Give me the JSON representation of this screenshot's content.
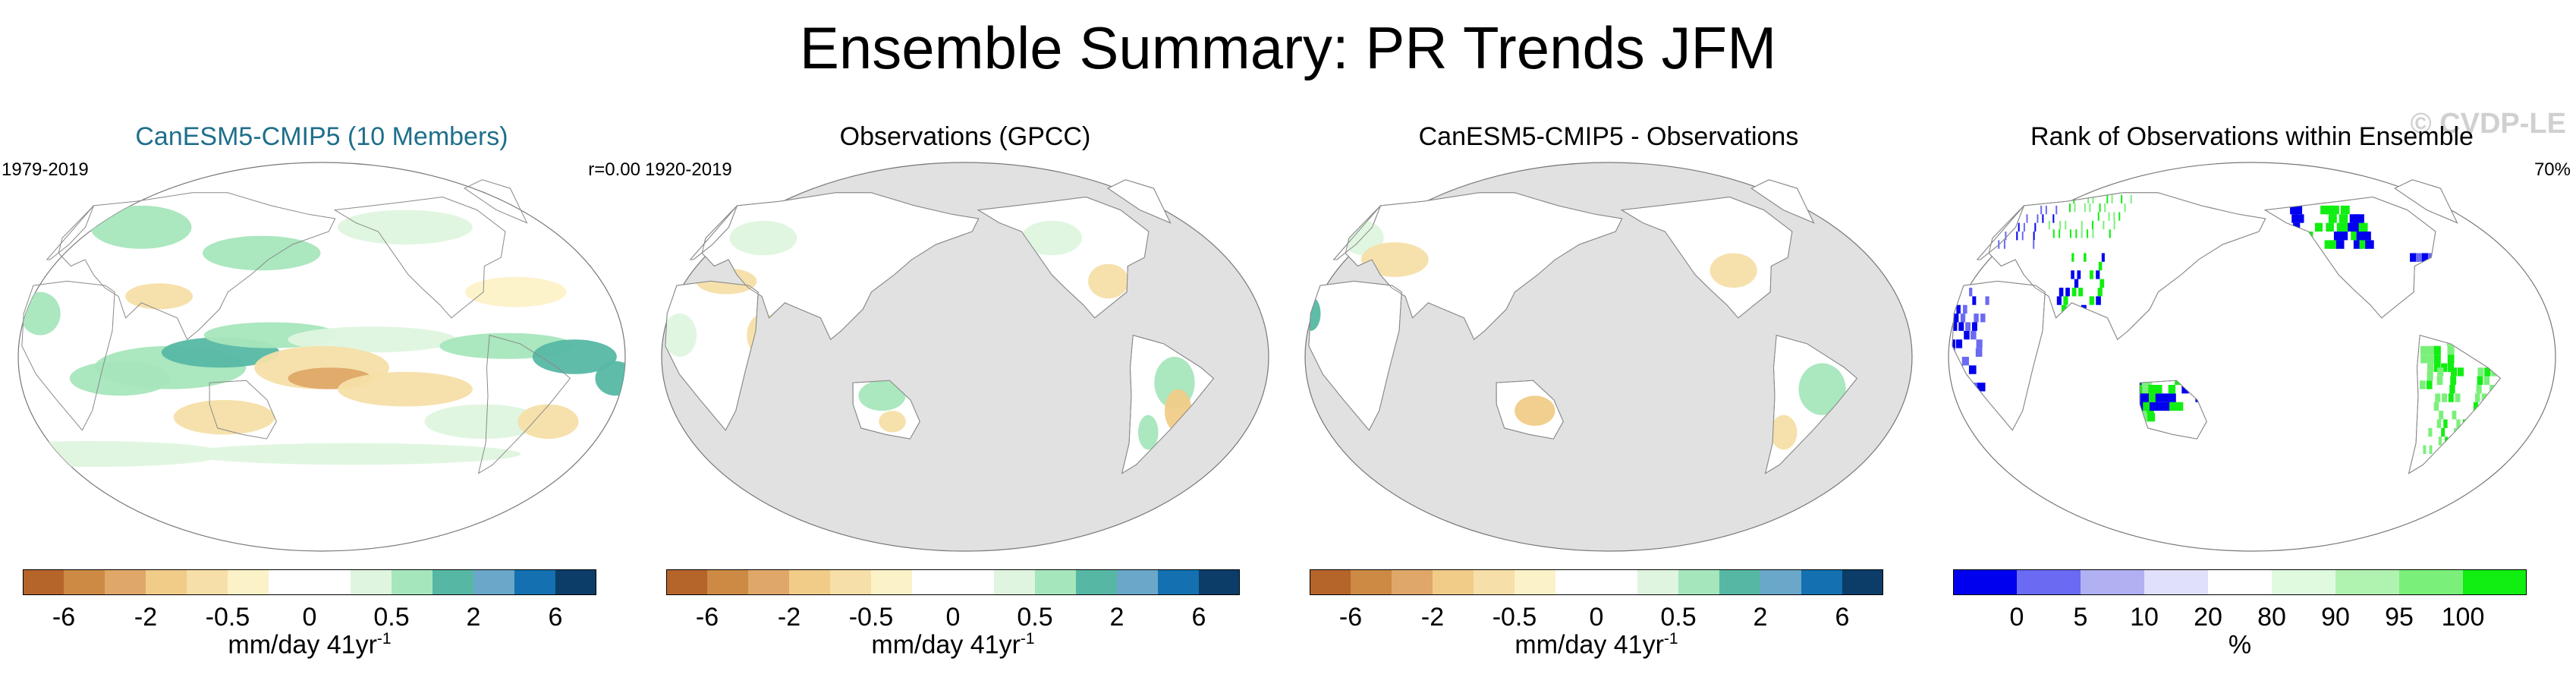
{
  "figure": {
    "title": "Ensemble Summary: PR Trends JFM",
    "watermark": "© CVDP-LE"
  },
  "colors": {
    "trend_scale": [
      "#b5642a",
      "#cc8a44",
      "#dfa868",
      "#f0cc88",
      "#f6dfa8",
      "#fcf2c8",
      "#ffffff",
      "#ffffff",
      "#dff5df",
      "#a6e6bc",
      "#56b8a4",
      "#6aa7c9",
      "#1470b0",
      "#0b3d68"
    ],
    "rank_scale": [
      "#0000ee",
      "#6a6af2",
      "#b0b0f2",
      "#e0e0fa",
      "#ffffff",
      "#e0fae0",
      "#b0f2b0",
      "#7af07a",
      "#11ee11"
    ],
    "ocean_masked": "#e1e1e1",
    "coast": "#8a8a8a"
  },
  "panels": [
    {
      "title": "CanESM5-CMIP5 (10 Members)",
      "years": "1979-2019",
      "stat": "r=0.00",
      "map_kind": "model",
      "cbar_ticks": [
        "-6",
        "-2",
        "-0.5",
        "0",
        "0.5",
        "2",
        "6"
      ],
      "cbar_units": "mm/day 41yr",
      "cbar_units_sup": "-1"
    },
    {
      "title": "Observations (GPCC)",
      "years": "1920-2019",
      "stat": "",
      "map_kind": "obs",
      "cbar_ticks": [
        "-6",
        "-2",
        "-0.5",
        "0",
        "0.5",
        "2",
        "6"
      ],
      "cbar_units": "mm/day 41yr",
      "cbar_units_sup": "-1"
    },
    {
      "title": "CanESM5-CMIP5 - Observations",
      "years": "",
      "stat": "",
      "map_kind": "diff",
      "cbar_ticks": [
        "-6",
        "-2",
        "-0.5",
        "0",
        "0.5",
        "2",
        "6"
      ],
      "cbar_units": "mm/day 41yr",
      "cbar_units_sup": "-1"
    },
    {
      "title": "Rank of Observations within Ensemble",
      "years": "",
      "stat": "70%",
      "map_kind": "rank",
      "cbar_ticks": [
        "0",
        "5",
        "10",
        "20",
        "80",
        "90",
        "95",
        "100"
      ],
      "cbar_units": "%",
      "cbar_units_sup": ""
    }
  ],
  "chart_data": [
    {
      "type": "heatmap",
      "title": "CanESM5-CMIP5 (10 Members)",
      "period": "1979-2019",
      "pattern_correlation": "r=0.00",
      "colorbar": {
        "ticks": [
          -6,
          -2,
          -0.5,
          0,
          0.5,
          2,
          6
        ],
        "units": "mm/day 41yr-1"
      },
      "features": [
        "wet tropical western Pacific and Indian Ocean",
        "dry central equatorial Pacific",
        "wet Southern Ocean band",
        "wet Atlantic ITCZ"
      ]
    },
    {
      "type": "heatmap",
      "title": "Observations (GPCC)",
      "period": "1920-2019",
      "colorbar": {
        "ticks": [
          -6,
          -2,
          -0.5,
          0,
          0.5,
          2,
          6
        ],
        "units": "mm/day 41yr-1"
      },
      "features": [
        "land only",
        "wet northern Australia and Maritime Continent",
        "mixed South America"
      ]
    },
    {
      "type": "heatmap",
      "title": "CanESM5-CMIP5 - Observations",
      "colorbar": {
        "ticks": [
          -6,
          -2,
          -0.5,
          0,
          0.5,
          2,
          6
        ],
        "units": "mm/day 41yr-1"
      },
      "features": [
        "land only",
        "wet South America",
        "dry Australia"
      ]
    },
    {
      "type": "heatmap",
      "title": "Rank of Observations within Ensemble",
      "summary": "70%",
      "colorbar": {
        "ticks": [
          0,
          5,
          10,
          20,
          80,
          90,
          95,
          100
        ],
        "units": "%"
      },
      "features": [
        "blue (low rank) and green (high rank) grid cells over land"
      ]
    }
  ]
}
